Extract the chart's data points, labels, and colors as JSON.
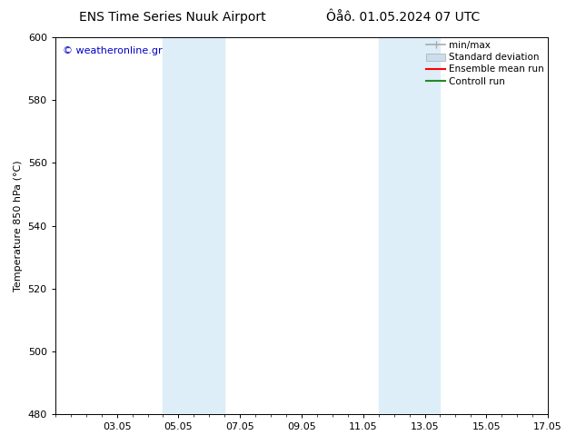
{
  "title_left": "ENS Time Series Nuuk Airport",
  "title_right": "Ôåô. 01.05.2024 07 UTC",
  "ylabel": "Temperature 850 hPa (°C)",
  "ylim": [
    480,
    600
  ],
  "yticks": [
    480,
    500,
    520,
    540,
    560,
    580,
    600
  ],
  "xlim": [
    0,
    16
  ],
  "xtick_labels": [
    "03.05",
    "05.05",
    "07.05",
    "09.05",
    "11.05",
    "13.05",
    "15.05",
    "17.05"
  ],
  "xtick_positions": [
    2,
    4,
    6,
    8,
    10,
    12,
    14,
    16
  ],
  "shaded_bands": [
    {
      "x_start": 3.5,
      "x_end": 5.5,
      "color": "#ddeef8"
    },
    {
      "x_start": 10.5,
      "x_end": 12.5,
      "color": "#ddeef8"
    }
  ],
  "background_color": "#ffffff",
  "watermark_text": "© weatheronline.gr",
  "watermark_color": "#0000cc",
  "legend_items": [
    {
      "label": "min/max",
      "color": "#aaaaaa",
      "lw": 1.2,
      "type": "line_bar"
    },
    {
      "label": "Standard deviation",
      "color": "#ccddee",
      "lw": 6,
      "type": "patch"
    },
    {
      "label": "Ensemble mean run",
      "color": "#ff0000",
      "lw": 1.5,
      "type": "line"
    },
    {
      "label": "Controll run",
      "color": "#228B22",
      "lw": 1.5,
      "type": "line"
    }
  ],
  "font_size_title": 10,
  "font_size_axis": 8,
  "font_size_ticks": 8,
  "font_size_legend": 7.5,
  "font_size_watermark": 8
}
